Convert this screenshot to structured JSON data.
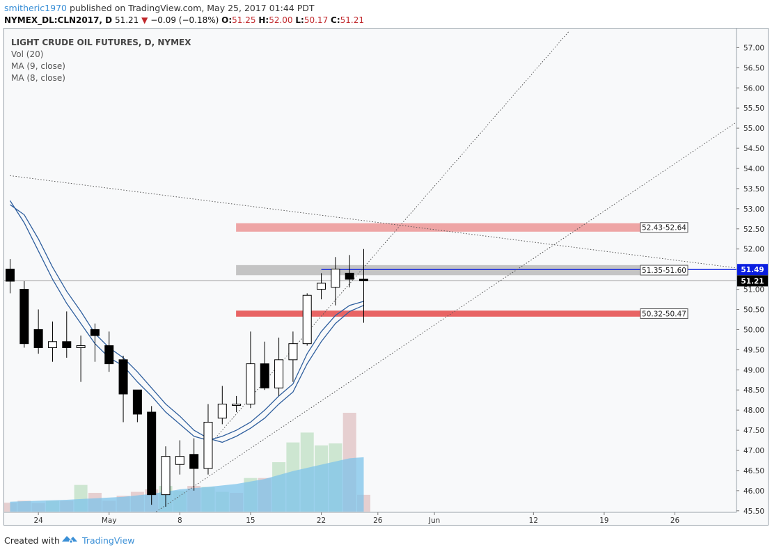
{
  "header": {
    "user": "smitheric1970",
    "published": "published on TradingView.com, May 25, 2017 01:44 PDT",
    "symbol": "NYMEX_DL:CLN2017, D",
    "last": "51.21",
    "change_arrow": "▼",
    "change": "−0.09 (−0.18%)",
    "o_label": "O:",
    "o": "51.25",
    "h_label": "H:",
    "h": "52.00",
    "l_label": "L:",
    "l": "50.17",
    "c_label": "C:",
    "c": "51.21"
  },
  "legend": {
    "title": "LIGHT CRUDE OIL FUTURES, D, NYMEX",
    "vol": "Vol (20)",
    "ma9": "MA (9, close)",
    "ma8": "MA (8, close)"
  },
  "footer": {
    "created": "Created with",
    "brand": "TradingView"
  },
  "colors": {
    "up_fill": "#ffffff",
    "down_fill": "#000000",
    "wick": "#000000",
    "ma": "#2f5f9e",
    "vol_up": "#c5e3c9",
    "vol_down": "#e3c8c8",
    "vol_ma": "#7ec3ea",
    "zone_top": "#eea5a5",
    "zone_mid": "#c4c4c4",
    "zone_low": "#e86464",
    "hline": "#0a1ee0",
    "trend": "#555555",
    "background": "#f8f9fa"
  },
  "chart_data": {
    "type": "candlestick",
    "y_range": [
      45.4,
      57.2
    ],
    "y_ticks": [
      "45.50",
      "46.00",
      "46.50",
      "47.00",
      "47.50",
      "48.00",
      "48.50",
      "49.00",
      "49.50",
      "50.00",
      "50.50",
      "51.00",
      "51.50",
      "52.00",
      "52.50",
      "53.00",
      "53.50",
      "54.00",
      "54.50",
      "55.00",
      "55.50",
      "56.00",
      "56.50",
      "57.00"
    ],
    "x_labels": [
      {
        "i": 2,
        "text": "24"
      },
      {
        "i": 7,
        "text": "May"
      },
      {
        "i": 12,
        "text": "8"
      },
      {
        "i": 17,
        "text": "15"
      },
      {
        "i": 22,
        "text": "22"
      },
      {
        "i": 26,
        "text": "26"
      },
      {
        "i": 30,
        "text": "Jun"
      },
      {
        "i": 37,
        "text": "12"
      },
      {
        "i": 42,
        "text": "19"
      },
      {
        "i": 47,
        "text": "26"
      }
    ],
    "candles": [
      {
        "i": 0,
        "o": 51.5,
        "h": 51.75,
        "l": 50.9,
        "c": 51.2
      },
      {
        "i": 1,
        "o": 51.0,
        "h": 51.2,
        "l": 49.55,
        "c": 49.65
      },
      {
        "i": 2,
        "o": 50.0,
        "h": 50.5,
        "l": 49.4,
        "c": 49.55
      },
      {
        "i": 3,
        "o": 49.55,
        "h": 50.2,
        "l": 49.2,
        "c": 49.7
      },
      {
        "i": 4,
        "o": 49.7,
        "h": 50.45,
        "l": 49.3,
        "c": 49.55
      },
      {
        "i": 5,
        "o": 49.55,
        "h": 49.85,
        "l": 48.7,
        "c": 49.6
      },
      {
        "i": 6,
        "o": 50.0,
        "h": 50.15,
        "l": 49.2,
        "c": 49.85
      },
      {
        "i": 7,
        "o": 49.6,
        "h": 49.95,
        "l": 48.95,
        "c": 49.15
      },
      {
        "i": 8,
        "o": 49.25,
        "h": 49.35,
        "l": 47.7,
        "c": 48.4
      },
      {
        "i": 9,
        "o": 48.5,
        "h": 48.5,
        "l": 47.7,
        "c": 47.9
      },
      {
        "i": 10,
        "o": 47.95,
        "h": 48.1,
        "l": 45.65,
        "c": 45.9
      },
      {
        "i": 11,
        "o": 45.9,
        "h": 47.1,
        "l": 45.6,
        "c": 46.85
      },
      {
        "i": 12,
        "o": 46.65,
        "h": 47.25,
        "l": 46.4,
        "c": 46.85
      },
      {
        "i": 13,
        "o": 46.9,
        "h": 47.3,
        "l": 46.0,
        "c": 46.55
      },
      {
        "i": 14,
        "o": 46.55,
        "h": 48.15,
        "l": 46.4,
        "c": 47.7
      },
      {
        "i": 15,
        "o": 47.8,
        "h": 48.6,
        "l": 47.65,
        "c": 48.15
      },
      {
        "i": 16,
        "o": 48.15,
        "h": 48.35,
        "l": 47.95,
        "c": 48.15
      },
      {
        "i": 17,
        "o": 48.15,
        "h": 49.95,
        "l": 48.05,
        "c": 49.15
      },
      {
        "i": 18,
        "o": 49.15,
        "h": 49.7,
        "l": 48.5,
        "c": 48.55
      },
      {
        "i": 19,
        "o": 48.55,
        "h": 49.8,
        "l": 48.35,
        "c": 49.25
      },
      {
        "i": 20,
        "o": 49.25,
        "h": 49.95,
        "l": 48.7,
        "c": 49.65
      },
      {
        "i": 21,
        "o": 49.65,
        "h": 50.9,
        "l": 49.6,
        "c": 50.85
      },
      {
        "i": 22,
        "o": 51.0,
        "h": 51.4,
        "l": 50.75,
        "c": 51.15
      },
      {
        "i": 23,
        "o": 51.05,
        "h": 51.8,
        "l": 50.6,
        "c": 51.5
      },
      {
        "i": 24,
        "o": 51.4,
        "h": 51.85,
        "l": 51.05,
        "c": 51.25
      },
      {
        "i": 25,
        "o": 51.25,
        "h": 52.0,
        "l": 50.17,
        "c": 51.21
      }
    ],
    "ma9": [
      [
        0,
        53.1
      ],
      [
        1,
        52.85
      ],
      [
        2,
        52.25
      ],
      [
        3,
        51.55
      ],
      [
        4,
        50.95
      ],
      [
        5,
        50.45
      ],
      [
        6,
        49.9
      ],
      [
        7,
        49.55
      ],
      [
        8,
        49.3
      ],
      [
        9,
        48.95
      ],
      [
        10,
        48.55
      ],
      [
        11,
        48.15
      ],
      [
        12,
        47.85
      ],
      [
        13,
        47.5
      ],
      [
        14,
        47.3
      ],
      [
        15,
        47.2
      ],
      [
        16,
        47.35
      ],
      [
        17,
        47.55
      ],
      [
        18,
        47.8
      ],
      [
        19,
        48.15
      ],
      [
        20,
        48.45
      ],
      [
        21,
        49.15
      ],
      [
        22,
        49.7
      ],
      [
        23,
        50.15
      ],
      [
        24,
        50.45
      ],
      [
        25,
        50.6
      ]
    ],
    "ma8": [
      [
        0,
        53.2
      ],
      [
        1,
        52.65
      ],
      [
        2,
        51.95
      ],
      [
        3,
        51.25
      ],
      [
        4,
        50.65
      ],
      [
        5,
        50.15
      ],
      [
        6,
        49.65
      ],
      [
        7,
        49.3
      ],
      [
        8,
        49.1
      ],
      [
        9,
        48.7
      ],
      [
        10,
        48.35
      ],
      [
        11,
        47.95
      ],
      [
        12,
        47.65
      ],
      [
        13,
        47.35
      ],
      [
        14,
        47.25
      ],
      [
        15,
        47.35
      ],
      [
        16,
        47.5
      ],
      [
        17,
        47.7
      ],
      [
        18,
        48.0
      ],
      [
        19,
        48.35
      ],
      [
        20,
        48.65
      ],
      [
        21,
        49.4
      ],
      [
        22,
        49.95
      ],
      [
        23,
        50.35
      ],
      [
        24,
        50.6
      ],
      [
        25,
        50.7
      ]
    ],
    "volume": [
      {
        "i": 0,
        "v": 0.18,
        "up": false
      },
      {
        "i": 1,
        "v": 0.22,
        "up": false
      },
      {
        "i": 2,
        "v": 0.17,
        "up": false
      },
      {
        "i": 3,
        "v": 0.22,
        "up": true
      },
      {
        "i": 4,
        "v": 0.22,
        "up": false
      },
      {
        "i": 5,
        "v": 0.54,
        "up": true
      },
      {
        "i": 6,
        "v": 0.38,
        "up": false
      },
      {
        "i": 7,
        "v": 0.22,
        "up": false
      },
      {
        "i": 8,
        "v": 0.32,
        "up": false
      },
      {
        "i": 9,
        "v": 0.4,
        "up": false
      },
      {
        "i": 10,
        "v": 0.45,
        "up": false
      },
      {
        "i": 11,
        "v": 0.52,
        "up": true
      },
      {
        "i": 12,
        "v": 0.42,
        "up": true
      },
      {
        "i": 13,
        "v": 0.52,
        "up": false
      },
      {
        "i": 14,
        "v": 0.5,
        "up": true
      },
      {
        "i": 15,
        "v": 0.4,
        "up": true
      },
      {
        "i": 16,
        "v": 0.38,
        "up": false
      },
      {
        "i": 17,
        "v": 0.68,
        "up": true
      },
      {
        "i": 18,
        "v": 0.68,
        "up": false
      },
      {
        "i": 19,
        "v": 1.0,
        "up": true
      },
      {
        "i": 20,
        "v": 1.4,
        "up": true
      },
      {
        "i": 21,
        "v": 1.6,
        "up": true
      },
      {
        "i": 22,
        "v": 1.34,
        "up": true
      },
      {
        "i": 23,
        "v": 1.38,
        "up": true
      },
      {
        "i": 24,
        "v": 2.0,
        "up": false
      },
      {
        "i": 25,
        "v": 0.34,
        "up": false
      }
    ],
    "volume_ma": [
      [
        0,
        0.2
      ],
      [
        2,
        0.22
      ],
      [
        4,
        0.24
      ],
      [
        6,
        0.27
      ],
      [
        8,
        0.3
      ],
      [
        10,
        0.36
      ],
      [
        12,
        0.45
      ],
      [
        14,
        0.5
      ],
      [
        16,
        0.56
      ],
      [
        18,
        0.66
      ],
      [
        20,
        0.82
      ],
      [
        22,
        0.95
      ],
      [
        24,
        1.08
      ],
      [
        25,
        1.1
      ]
    ],
    "zones": [
      {
        "label": "52.43-52.64",
        "y1": 52.43,
        "y2": 52.64,
        "from": 16,
        "color_key": "zone_top"
      },
      {
        "label": "51.35-51.60",
        "y1": 51.35,
        "y2": 51.6,
        "from": 16,
        "color_key": "zone_mid"
      },
      {
        "label": "50.32-50.47",
        "y1": 50.32,
        "y2": 50.47,
        "from": 16,
        "color_key": "zone_low"
      }
    ],
    "hline": {
      "y": 51.49,
      "from": 22.0,
      "label": "51.49"
    },
    "last_price": {
      "y": 51.21,
      "label": "51.21"
    },
    "trendlines": [
      {
        "x1": 0.0,
        "y1": 53.82,
        "x2": 52.0,
        "y2": 51.5
      },
      {
        "x1": 14.5,
        "y1": 47.3,
        "x2": 39.5,
        "y2": 57.4
      },
      {
        "x1": 10.0,
        "y1": 45.4,
        "x2": 52.0,
        "y2": 55.3
      }
    ]
  }
}
